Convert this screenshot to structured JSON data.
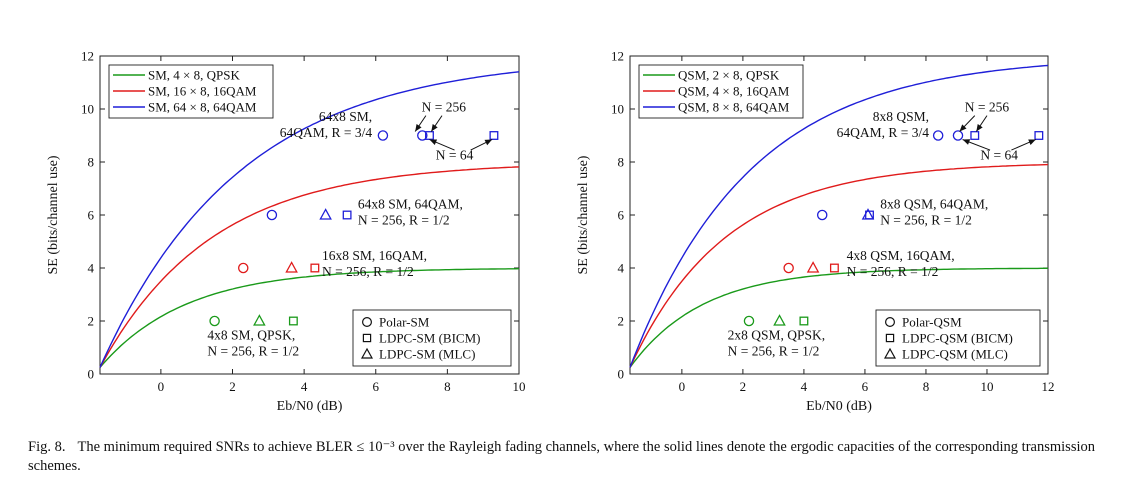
{
  "caption": {
    "label": "Fig. 8.",
    "text": "The minimum required SNRs to achieve BLER ≤ 10⁻³ over the Rayleigh fading channels, where the solid lines denote the ergodic capacities of the corresponding transmission schemes."
  },
  "colors": {
    "green": "#1a9a1a",
    "red": "#e01b1b",
    "blue": "#1f1fd8"
  },
  "chart_data": [
    {
      "type": "line",
      "xlabel": "Eb/N0 (dB)",
      "ylabel": "SE (bits/channel use)",
      "xlim": [
        -1.7,
        10
      ],
      "ylim": [
        0,
        12
      ],
      "xticks": [
        0,
        2,
        4,
        6,
        8,
        10
      ],
      "yticks": [
        0,
        2,
        4,
        6,
        8,
        10,
        12
      ],
      "grid": false,
      "legend_position": "top-left",
      "series": [
        {
          "name": "SM, 4 × 8, QPSK",
          "color": "green",
          "cap": 4,
          "x0": -1.7,
          "k": 0.42
        },
        {
          "name": "SM, 16 × 8, 16QAM",
          "color": "red",
          "cap": 8,
          "x0": -1.7,
          "k": 0.32
        },
        {
          "name": "SM, 64 × 8, 64QAM",
          "color": "blue",
          "cap": 12,
          "x0": -1.7,
          "k": 0.255
        }
      ],
      "points": [
        {
          "x": 1.5,
          "y": 2,
          "marker": "circle",
          "color": "green"
        },
        {
          "x": 2.75,
          "y": 2,
          "marker": "triangle",
          "color": "green"
        },
        {
          "x": 3.7,
          "y": 2,
          "marker": "square",
          "color": "green"
        },
        {
          "x": 2.3,
          "y": 4,
          "marker": "circle",
          "color": "red"
        },
        {
          "x": 3.65,
          "y": 4,
          "marker": "triangle",
          "color": "red"
        },
        {
          "x": 4.3,
          "y": 4,
          "marker": "square",
          "color": "red"
        },
        {
          "x": 3.1,
          "y": 6,
          "marker": "circle",
          "color": "blue"
        },
        {
          "x": 4.6,
          "y": 6,
          "marker": "triangle",
          "color": "blue"
        },
        {
          "x": 5.2,
          "y": 6,
          "marker": "square",
          "color": "blue"
        },
        {
          "x": 6.2,
          "y": 9,
          "marker": "circle",
          "color": "blue"
        },
        {
          "x": 7.3,
          "y": 9,
          "marker": "circle",
          "color": "blue"
        },
        {
          "x": 7.5,
          "y": 9,
          "marker": "square",
          "color": "blue"
        },
        {
          "x": 9.3,
          "y": 9,
          "marker": "square",
          "color": "blue"
        }
      ],
      "annotations": [
        {
          "lines": [
            "4x8 SM, QPSK,",
            "N = 256, R = 1/2"
          ],
          "x": 1.3,
          "y": 1.3,
          "anchor": "start"
        },
        {
          "lines": [
            "16x8 SM, 16QAM,",
            "N = 256, R = 1/2"
          ],
          "x": 4.5,
          "y": 4.3,
          "anchor": "start"
        },
        {
          "lines": [
            "64x8 SM, 64QAM,",
            "N = 256, R = 1/2"
          ],
          "x": 5.5,
          "y": 6.25,
          "anchor": "start"
        },
        {
          "lines": [
            "64x8 SM,",
            "64QAM, R = 3/4"
          ],
          "x": 5.9,
          "y": 9.55,
          "anchor": "end"
        },
        {
          "lines": [
            "N = 256"
          ],
          "x": 7.9,
          "y": 9.9,
          "anchor": "middle"
        },
        {
          "lines": [
            "N = 64"
          ],
          "x": 8.2,
          "y": 8.1,
          "anchor": "middle"
        }
      ],
      "arrows": [
        {
          "from": [
            7.4,
            9.75
          ],
          "to": [
            7.1,
            9.15
          ]
        },
        {
          "from": [
            7.85,
            9.75
          ],
          "to": [
            7.55,
            9.15
          ]
        },
        {
          "from": [
            8.2,
            8.45
          ],
          "to": [
            7.5,
            8.85
          ]
        },
        {
          "from": [
            8.65,
            8.45
          ],
          "to": [
            9.25,
            8.85
          ]
        }
      ],
      "marker_legend": [
        "Polar-SM",
        "LDPC-SM (BICM)",
        "LDPC-SM (MLC)"
      ]
    },
    {
      "type": "line",
      "xlabel": "Eb/N0 (dB)",
      "ylabel": "SE (bits/channel use)",
      "xlim": [
        -1.7,
        12
      ],
      "ylim": [
        0,
        12
      ],
      "xticks": [
        0,
        2,
        4,
        6,
        8,
        10,
        12
      ],
      "yticks": [
        0,
        2,
        4,
        6,
        8,
        10,
        12
      ],
      "grid": false,
      "legend_position": "top-left",
      "series": [
        {
          "name": "QSM, 2 × 8, QPSK",
          "color": "green",
          "cap": 4,
          "x0": -1.7,
          "k": 0.42
        },
        {
          "name": "QSM, 4 × 8, 16QAM",
          "color": "red",
          "cap": 8,
          "x0": -1.7,
          "k": 0.32
        },
        {
          "name": "QSM, 8 × 8, 64QAM",
          "color": "blue",
          "cap": 12,
          "x0": -1.7,
          "k": 0.255
        }
      ],
      "points": [
        {
          "x": 2.2,
          "y": 2,
          "marker": "circle",
          "color": "green"
        },
        {
          "x": 3.2,
          "y": 2,
          "marker": "triangle",
          "color": "green"
        },
        {
          "x": 4.0,
          "y": 2,
          "marker": "square",
          "color": "green"
        },
        {
          "x": 3.5,
          "y": 4,
          "marker": "circle",
          "color": "red"
        },
        {
          "x": 4.3,
          "y": 4,
          "marker": "triangle",
          "color": "red"
        },
        {
          "x": 5.0,
          "y": 4,
          "marker": "square",
          "color": "red"
        },
        {
          "x": 4.6,
          "y": 6,
          "marker": "circle",
          "color": "blue"
        },
        {
          "x": 6.1,
          "y": 6,
          "marker": "triangle",
          "color": "blue"
        },
        {
          "x": 6.15,
          "y": 6,
          "marker": "square",
          "color": "blue"
        },
        {
          "x": 8.4,
          "y": 9,
          "marker": "circle",
          "color": "blue"
        },
        {
          "x": 9.05,
          "y": 9,
          "marker": "circle",
          "color": "blue"
        },
        {
          "x": 9.6,
          "y": 9,
          "marker": "square",
          "color": "blue"
        },
        {
          "x": 11.7,
          "y": 9,
          "marker": "square",
          "color": "blue"
        }
      ],
      "annotations": [
        {
          "lines": [
            "2x8 QSM, QPSK,",
            "N = 256, R = 1/2"
          ],
          "x": 1.5,
          "y": 1.3,
          "anchor": "start"
        },
        {
          "lines": [
            "4x8 QSM, 16QAM,",
            "N = 256, R = 1/2"
          ],
          "x": 5.4,
          "y": 4.3,
          "anchor": "start"
        },
        {
          "lines": [
            "8x8 QSM, 64QAM,",
            "N = 256, R = 1/2"
          ],
          "x": 6.5,
          "y": 6.25,
          "anchor": "start"
        },
        {
          "lines": [
            "8x8 QSM,",
            "64QAM, R = 3/4"
          ],
          "x": 8.1,
          "y": 9.55,
          "anchor": "end"
        },
        {
          "lines": [
            "N = 256"
          ],
          "x": 10.0,
          "y": 9.9,
          "anchor": "middle"
        },
        {
          "lines": [
            "N = 64"
          ],
          "x": 10.4,
          "y": 8.1,
          "anchor": "middle"
        }
      ],
      "arrows": [
        {
          "from": [
            9.6,
            9.75
          ],
          "to": [
            9.1,
            9.15
          ]
        },
        {
          "from": [
            10.0,
            9.75
          ],
          "to": [
            9.65,
            9.15
          ]
        },
        {
          "from": [
            10.1,
            8.45
          ],
          "to": [
            9.2,
            8.85
          ]
        },
        {
          "from": [
            10.8,
            8.45
          ],
          "to": [
            11.6,
            8.85
          ]
        }
      ],
      "marker_legend": [
        "Polar-QSM",
        "LDPC-QSM (BICM)",
        "LDPC-QSM (MLC)"
      ]
    }
  ]
}
